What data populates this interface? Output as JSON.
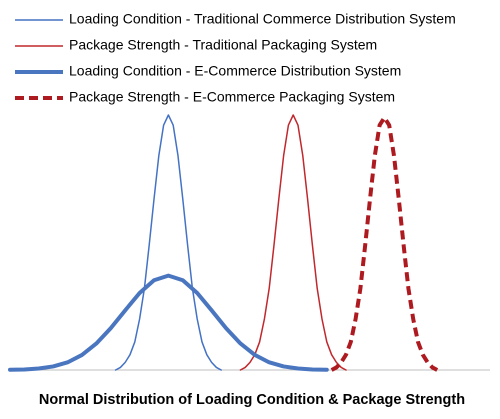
{
  "chart_data": {
    "type": "line",
    "title": "Normal Distribution of Loading Condition & Package Strength",
    "xlim": [
      0,
      100
    ],
    "ylim": [
      0,
      100
    ],
    "legend": "top-left",
    "series": [
      {
        "name": "Loading Condition - Traditional Commerce Distribution System",
        "color": "#4472c4",
        "line_width": 1.5,
        "dashed": false,
        "x": [
          22,
          23,
          24,
          25,
          26,
          27,
          28,
          29,
          30,
          31,
          32,
          33,
          34,
          35,
          36,
          37,
          38,
          39,
          40,
          41,
          42,
          43,
          44
        ],
        "values": [
          0,
          1,
          3,
          6,
          11,
          20,
          32,
          49,
          67,
          84,
          96,
          100,
          96,
          84,
          67,
          49,
          32,
          20,
          11,
          6,
          3,
          1,
          0
        ]
      },
      {
        "name": "Package Strength - Traditional Packaging System",
        "color": "#c0282d",
        "line_width": 1.5,
        "dashed": false,
        "x": [
          48,
          49,
          50,
          51,
          52,
          53,
          54,
          55,
          56,
          57,
          58,
          59,
          60,
          61,
          62,
          63,
          64,
          65,
          66,
          67,
          68,
          69,
          70
        ],
        "values": [
          0,
          1,
          3,
          6,
          11,
          20,
          32,
          49,
          67,
          84,
          96,
          100,
          96,
          84,
          67,
          49,
          32,
          20,
          11,
          6,
          3,
          1,
          0
        ]
      },
      {
        "name": "Loading Condition - E-Commerce Distribution System",
        "color": "#4a76c0",
        "line_width": 4,
        "dashed": false,
        "x": [
          0,
          3,
          6,
          9,
          12,
          15,
          18,
          21,
          24,
          27,
          30,
          33,
          36,
          39,
          42,
          45,
          48,
          51,
          54,
          57,
          60,
          63,
          66
        ],
        "values": [
          0.1,
          0.2,
          0.6,
          1.4,
          3,
          5.9,
          10.4,
          16.4,
          23.4,
          30.2,
          35.2,
          37,
          35.2,
          30.2,
          23.4,
          16.4,
          10.4,
          5.9,
          3,
          1.4,
          0.6,
          0.2,
          0.1
        ]
      },
      {
        "name": "Package Strength - E-Commerce Packaging System",
        "color": "#ad1a1f",
        "line_width": 4,
        "dashed": true,
        "x": [
          67,
          68,
          69,
          70,
          71,
          72,
          73,
          74,
          75,
          76,
          77,
          78,
          79,
          80,
          81,
          82,
          83,
          84,
          85,
          86,
          87,
          88,
          89
        ],
        "values": [
          0,
          1,
          3,
          6,
          11,
          20,
          32,
          49,
          67,
          84,
          96,
          99,
          96,
          84,
          67,
          49,
          32,
          20,
          11,
          6,
          3,
          1,
          0
        ]
      }
    ]
  }
}
